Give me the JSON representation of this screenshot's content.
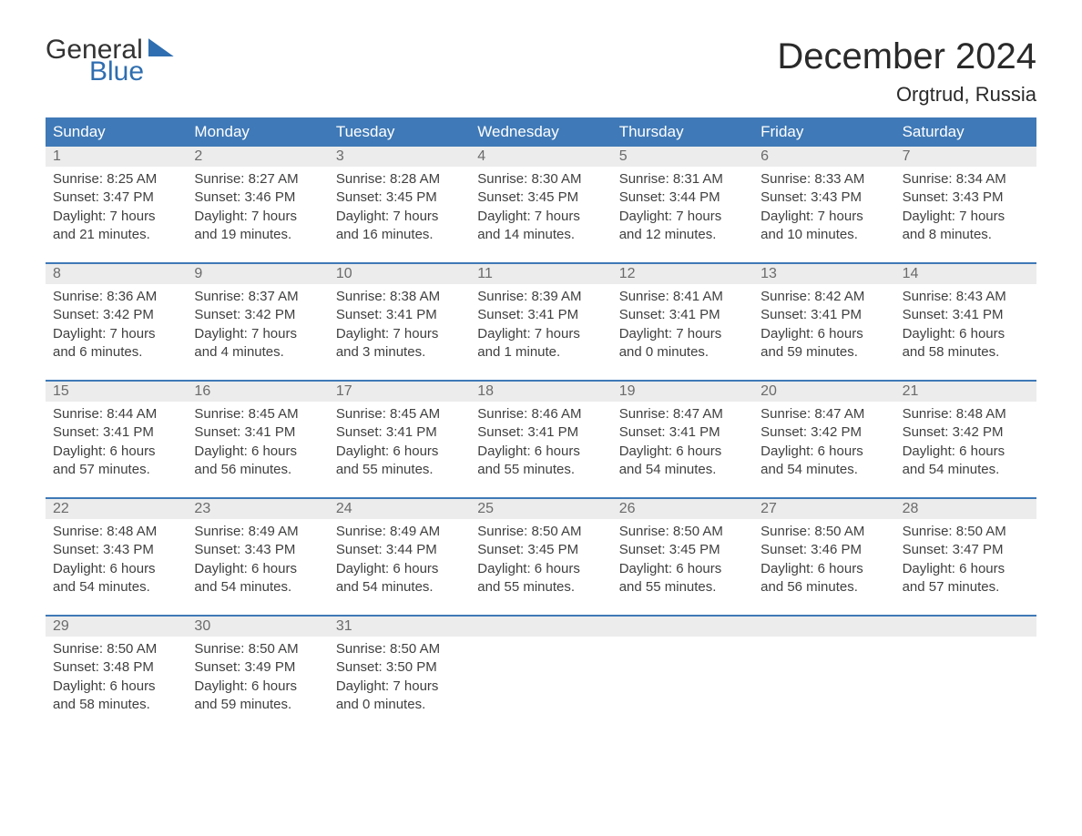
{
  "logo": {
    "line1": "General",
    "line2": "Blue"
  },
  "title": "December 2024",
  "location": "Orgtrud, Russia",
  "colors": {
    "header_bg": "#3f79b7",
    "header_text": "#ffffff",
    "week_border": "#3f79b7",
    "daynum_bg": "#ececec",
    "daynum_text": "#6b6b6b",
    "body_text": "#404040",
    "logo_blue": "#2f6eb0"
  },
  "day_names": [
    "Sunday",
    "Monday",
    "Tuesday",
    "Wednesday",
    "Thursday",
    "Friday",
    "Saturday"
  ],
  "weeks": [
    [
      {
        "num": "1",
        "sunrise": "8:25 AM",
        "sunset": "3:47 PM",
        "daylight": "7 hours and 21 minutes."
      },
      {
        "num": "2",
        "sunrise": "8:27 AM",
        "sunset": "3:46 PM",
        "daylight": "7 hours and 19 minutes."
      },
      {
        "num": "3",
        "sunrise": "8:28 AM",
        "sunset": "3:45 PM",
        "daylight": "7 hours and 16 minutes."
      },
      {
        "num": "4",
        "sunrise": "8:30 AM",
        "sunset": "3:45 PM",
        "daylight": "7 hours and 14 minutes."
      },
      {
        "num": "5",
        "sunrise": "8:31 AM",
        "sunset": "3:44 PM",
        "daylight": "7 hours and 12 minutes."
      },
      {
        "num": "6",
        "sunrise": "8:33 AM",
        "sunset": "3:43 PM",
        "daylight": "7 hours and 10 minutes."
      },
      {
        "num": "7",
        "sunrise": "8:34 AM",
        "sunset": "3:43 PM",
        "daylight": "7 hours and 8 minutes."
      }
    ],
    [
      {
        "num": "8",
        "sunrise": "8:36 AM",
        "sunset": "3:42 PM",
        "daylight": "7 hours and 6 minutes."
      },
      {
        "num": "9",
        "sunrise": "8:37 AM",
        "sunset": "3:42 PM",
        "daylight": "7 hours and 4 minutes."
      },
      {
        "num": "10",
        "sunrise": "8:38 AM",
        "sunset": "3:41 PM",
        "daylight": "7 hours and 3 minutes."
      },
      {
        "num": "11",
        "sunrise": "8:39 AM",
        "sunset": "3:41 PM",
        "daylight": "7 hours and 1 minute."
      },
      {
        "num": "12",
        "sunrise": "8:41 AM",
        "sunset": "3:41 PM",
        "daylight": "7 hours and 0 minutes."
      },
      {
        "num": "13",
        "sunrise": "8:42 AM",
        "sunset": "3:41 PM",
        "daylight": "6 hours and 59 minutes."
      },
      {
        "num": "14",
        "sunrise": "8:43 AM",
        "sunset": "3:41 PM",
        "daylight": "6 hours and 58 minutes."
      }
    ],
    [
      {
        "num": "15",
        "sunrise": "8:44 AM",
        "sunset": "3:41 PM",
        "daylight": "6 hours and 57 minutes."
      },
      {
        "num": "16",
        "sunrise": "8:45 AM",
        "sunset": "3:41 PM",
        "daylight": "6 hours and 56 minutes."
      },
      {
        "num": "17",
        "sunrise": "8:45 AM",
        "sunset": "3:41 PM",
        "daylight": "6 hours and 55 minutes."
      },
      {
        "num": "18",
        "sunrise": "8:46 AM",
        "sunset": "3:41 PM",
        "daylight": "6 hours and 55 minutes."
      },
      {
        "num": "19",
        "sunrise": "8:47 AM",
        "sunset": "3:41 PM",
        "daylight": "6 hours and 54 minutes."
      },
      {
        "num": "20",
        "sunrise": "8:47 AM",
        "sunset": "3:42 PM",
        "daylight": "6 hours and 54 minutes."
      },
      {
        "num": "21",
        "sunrise": "8:48 AM",
        "sunset": "3:42 PM",
        "daylight": "6 hours and 54 minutes."
      }
    ],
    [
      {
        "num": "22",
        "sunrise": "8:48 AM",
        "sunset": "3:43 PM",
        "daylight": "6 hours and 54 minutes."
      },
      {
        "num": "23",
        "sunrise": "8:49 AM",
        "sunset": "3:43 PM",
        "daylight": "6 hours and 54 minutes."
      },
      {
        "num": "24",
        "sunrise": "8:49 AM",
        "sunset": "3:44 PM",
        "daylight": "6 hours and 54 minutes."
      },
      {
        "num": "25",
        "sunrise": "8:50 AM",
        "sunset": "3:45 PM",
        "daylight": "6 hours and 55 minutes."
      },
      {
        "num": "26",
        "sunrise": "8:50 AM",
        "sunset": "3:45 PM",
        "daylight": "6 hours and 55 minutes."
      },
      {
        "num": "27",
        "sunrise": "8:50 AM",
        "sunset": "3:46 PM",
        "daylight": "6 hours and 56 minutes."
      },
      {
        "num": "28",
        "sunrise": "8:50 AM",
        "sunset": "3:47 PM",
        "daylight": "6 hours and 57 minutes."
      }
    ],
    [
      {
        "num": "29",
        "sunrise": "8:50 AM",
        "sunset": "3:48 PM",
        "daylight": "6 hours and 58 minutes."
      },
      {
        "num": "30",
        "sunrise": "8:50 AM",
        "sunset": "3:49 PM",
        "daylight": "6 hours and 59 minutes."
      },
      {
        "num": "31",
        "sunrise": "8:50 AM",
        "sunset": "3:50 PM",
        "daylight": "7 hours and 0 minutes."
      },
      null,
      null,
      null,
      null
    ]
  ],
  "labels": {
    "sunrise": "Sunrise: ",
    "sunset": "Sunset: ",
    "daylight": "Daylight: "
  }
}
